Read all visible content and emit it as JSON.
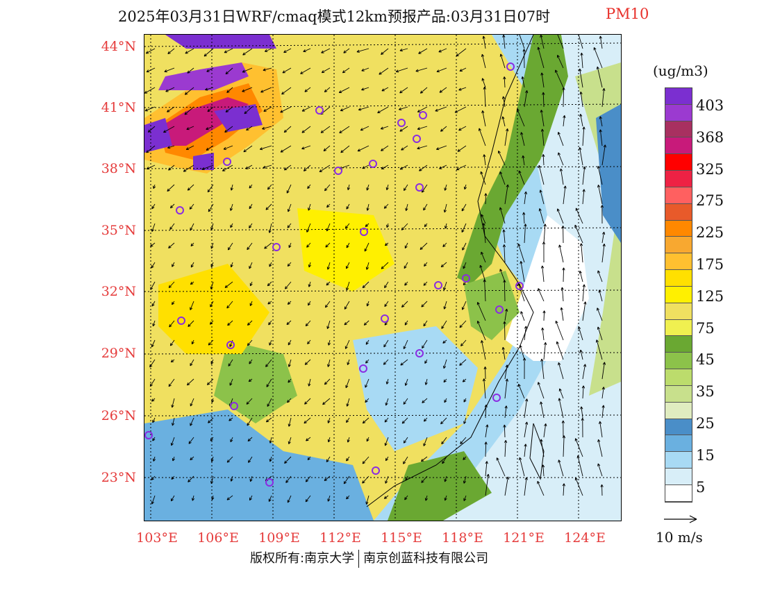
{
  "title": {
    "main": "2025年03月31日WRF/cmaq模式12km预报产品:03月31日07时",
    "variable": "PM10"
  },
  "latitude_labels": [
    "44°N",
    "41°N",
    "38°N",
    "35°N",
    "32°N",
    "29°N",
    "26°N",
    "23°N"
  ],
  "longitude_labels": [
    "103°E",
    "106°E",
    "109°E",
    "112°E",
    "115°E",
    "118°E",
    "121°E",
    "124°E"
  ],
  "colorbar": {
    "units": "(ug/m3)",
    "labels": [
      "403",
      "368",
      "325",
      "275",
      "225",
      "175",
      "125",
      "75",
      "45",
      "35",
      "25",
      "15",
      "5"
    ],
    "colors": [
      "#7b2fd0",
      "#9b3ad0",
      "#a83060",
      "#c81a7a",
      "#ff0000",
      "#ee2244",
      "#ff6060",
      "#e85a2a",
      "#ff8800",
      "#f8a830",
      "#ffc030",
      "#ffe000",
      "#fff000",
      "#f0e060",
      "#f0f050",
      "#6aa832",
      "#8cc24a",
      "#bcdc6c",
      "#c8e08c",
      "#e0ecc0",
      "#4a8ec8",
      "#6ab0e0",
      "#a8daf4",
      "#d8eef8",
      "#ffffff"
    ]
  },
  "wind_key": {
    "label": "10 m/s"
  },
  "copyright": {
    "left": "版权所有:南京大学",
    "right": "南京创蓝科技有限公司"
  }
}
